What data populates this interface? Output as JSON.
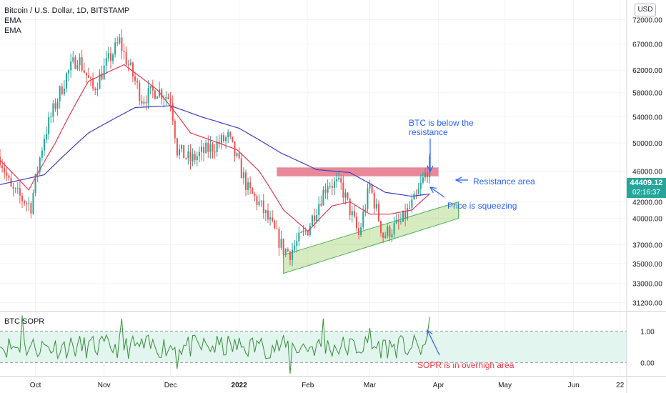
{
  "legend": {
    "symbol": "Bitcoin / U.S. Dollar, 1D, BITSTAMP",
    "ema1": "EMA",
    "ema2": "EMA"
  },
  "currency": "USD",
  "last_price": "44409.12",
  "countdown": "02:16:37",
  "sopr_label": "BTC SOPR",
  "annotations": {
    "btc_below_line1": "BTC is below the",
    "btc_below_line2": "resistance",
    "resistance": "Resistance area",
    "squeezing": "Price is squeezing",
    "sopr_overhigh": "SOPR is in overhigh area"
  },
  "colors": {
    "up": "#26a69a",
    "down": "#ef5350",
    "ema_fast": "#e53950",
    "ema_slow": "#3f3fbf",
    "sopr": "#388e3c",
    "resistance": "#e57386",
    "support": "#9ccc65",
    "annotation": "#2962ff",
    "sopr_note": "#f23645"
  },
  "chart_data": [
    {
      "type": "candlestick",
      "title": "Bitcoin / U.S. Dollar, 1D, BITSTAMP",
      "y_scale": "log",
      "y_ticks": [
        31200,
        33000,
        35000,
        37000,
        40000,
        42000,
        46000,
        50000,
        54000,
        58000,
        62000,
        67000,
        72000
      ],
      "y_tick_labels": [
        "31200.00",
        "33000.00",
        "35000.00",
        "37000.00",
        "40000.00",
        "42000.00",
        "46000.00",
        "50000.00",
        "54000.00",
        "58000.00",
        "62000.00",
        "67000.00",
        "72000.00"
      ],
      "x_labels": [
        "Oct",
        "Nov",
        "Dec",
        "2022",
        "Feb",
        "Mar",
        "Apr",
        "May",
        "Jun",
        "22"
      ],
      "x_label_dates": [
        "2021-10-01",
        "2021-11-01",
        "2021-12-01",
        "2022-01-01",
        "2022-02-01",
        "2022-03-01",
        "2022-04-01",
        "2022-05-01",
        "2022-06-01",
        "2022-06-22"
      ],
      "date_range": [
        "2021-09-15",
        "2022-06-25"
      ],
      "ylim": [
        30500,
        75000
      ],
      "close_anchors": [
        [
          "2021-09-15",
          48000
        ],
        [
          "2021-09-20",
          43500
        ],
        [
          "2021-09-29",
          41500
        ],
        [
          "2021-10-05",
          51000
        ],
        [
          "2021-10-15",
          61000
        ],
        [
          "2021-10-20",
          64500
        ],
        [
          "2021-10-27",
          58500
        ],
        [
          "2021-11-08",
          67500
        ],
        [
          "2021-11-10",
          65000
        ],
        [
          "2021-11-18",
          57000
        ],
        [
          "2021-11-25",
          58500
        ],
        [
          "2021-12-01",
          57000
        ],
        [
          "2021-12-04",
          49000
        ],
        [
          "2021-12-10",
          47500
        ],
        [
          "2021-12-27",
          50800
        ],
        [
          "2022-01-05",
          43500
        ],
        [
          "2022-01-10",
          41800
        ],
        [
          "2022-01-21",
          36500
        ],
        [
          "2022-01-24",
          36200
        ],
        [
          "2022-02-01",
          38800
        ],
        [
          "2022-02-10",
          44500
        ],
        [
          "2022-02-16",
          44000
        ],
        [
          "2022-02-24",
          38000
        ],
        [
          "2022-03-01",
          44000
        ],
        [
          "2022-03-07",
          38000
        ],
        [
          "2022-03-15",
          39500
        ],
        [
          "2022-03-22",
          42500
        ],
        [
          "2022-03-28",
          47000
        ]
      ],
      "ema_fast_anchors": [
        [
          "2021-09-15",
          47500
        ],
        [
          "2021-09-28",
          43500
        ],
        [
          "2021-10-10",
          50000
        ],
        [
          "2021-10-25",
          60000
        ],
        [
          "2021-11-10",
          63000
        ],
        [
          "2021-11-25",
          58500
        ],
        [
          "2021-12-10",
          51500
        ],
        [
          "2021-12-31",
          49000
        ],
        [
          "2022-01-10",
          46000
        ],
        [
          "2022-01-21",
          41000
        ],
        [
          "2022-02-01",
          38500
        ],
        [
          "2022-02-12",
          41500
        ],
        [
          "2022-02-20",
          42000
        ],
        [
          "2022-03-01",
          40500
        ],
        [
          "2022-03-10",
          40500
        ],
        [
          "2022-03-20",
          41000
        ],
        [
          "2022-03-28",
          43000
        ]
      ],
      "ema_slow_anchors": [
        [
          "2021-09-15",
          44200
        ],
        [
          "2021-10-05",
          45500
        ],
        [
          "2021-10-25",
          51500
        ],
        [
          "2021-11-15",
          55500
        ],
        [
          "2021-12-01",
          55800
        ],
        [
          "2021-12-15",
          54000
        ],
        [
          "2022-01-01",
          52200
        ],
        [
          "2022-01-20",
          48500
        ],
        [
          "2022-02-05",
          46200
        ],
        [
          "2022-02-20",
          45800
        ],
        [
          "2022-03-08",
          43200
        ],
        [
          "2022-03-20",
          42700
        ],
        [
          "2022-03-28",
          43000
        ]
      ],
      "resistance_zone": {
        "from": "2022-01-18",
        "to": "2022-04-01",
        "low": 45300,
        "high": 46500
      },
      "support_channel": {
        "from": "2022-01-21",
        "to": "2022-04-10",
        "start_low": 34000,
        "start_high": 35900,
        "end_low": 40000,
        "end_high": 42000
      },
      "last_price": 44409.12
    },
    {
      "type": "line",
      "title": "BTC SOPR",
      "y_ticks": [
        0,
        1
      ],
      "y_tick_labels": [
        "0.00",
        "1.00"
      ],
      "ylim": [
        -0.4,
        1.6
      ],
      "band": [
        0,
        1
      ],
      "series_anchors": [
        [
          "2021-09-15",
          0.5
        ],
        [
          "2021-09-25",
          1.5
        ],
        [
          "2021-10-10",
          0.7
        ],
        [
          "2021-11-09",
          1.4
        ],
        [
          "2021-12-04",
          -0.2
        ],
        [
          "2022-01-10",
          0.6
        ],
        [
          "2022-01-24",
          -0.35
        ],
        [
          "2022-02-08",
          1.4
        ],
        [
          "2022-03-01",
          1.1
        ],
        [
          "2022-03-28",
          1.45
        ]
      ]
    }
  ]
}
